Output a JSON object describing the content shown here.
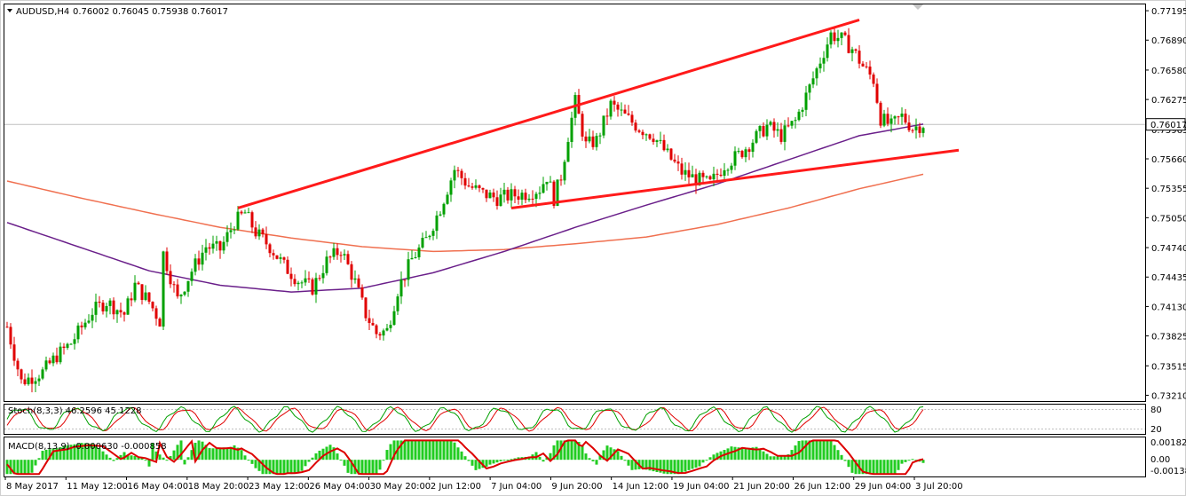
{
  "header": {
    "symbol": "AUDUSD,H4",
    "values": "0.76002 0.76045 0.75938 0.76017"
  },
  "colors": {
    "bull": "#00a000",
    "bear": "#e00000",
    "ma_fast": "#6a1f8a",
    "ma_slow": "#f07050",
    "trendline": "#ff1a1a",
    "stoch_main": "#00a000",
    "stoch_signal": "#e00000",
    "macd_hist": "#22cc22",
    "macd_signal": "#dd0000",
    "current_price_line": "#c0c0c0"
  },
  "chart_data": {
    "type": "candlestick",
    "price_scale": [
      0.77195,
      0.7689,
      0.7658,
      0.76275,
      0.75965,
      0.7566,
      0.75355,
      0.7505,
      0.7474,
      0.74435,
      0.7413,
      0.73825,
      0.73515,
      0.7321
    ],
    "ylim": [
      0.7315,
      0.7726
    ],
    "current_price": 0.76017,
    "current_price_label": "0.76017",
    "price_scale_labels": [
      "0.77195",
      "0.76890",
      "0.76580",
      "0.76275",
      "0.75965",
      "0.75660",
      "0.75355",
      "0.75050",
      "0.74740",
      "0.74435",
      "0.74130",
      "0.73825",
      "0.73515",
      "0.73210"
    ],
    "time_labels": [
      "8 May 2017",
      "11 May 12:00",
      "16 May 04:00",
      "18 May 20:00",
      "23 May 12:00",
      "26 May 04:00",
      "30 May 20:00",
      "2 Jun 12:00",
      "7 Jun 04:00",
      "9 Jun 20:00",
      "14 Jun 12:00",
      "19 Jun 04:00",
      "21 Jun 20:00",
      "26 Jun 12:00",
      "29 Jun 04:00",
      "3 Jul 20:00"
    ],
    "bars": 170,
    "price_path": [
      [
        0,
        0.7392
      ],
      [
        4,
        0.7335
      ],
      [
        10,
        0.7345
      ],
      [
        14,
        0.7362
      ],
      [
        18,
        0.7375
      ],
      [
        24,
        0.7408
      ],
      [
        28,
        0.7418
      ],
      [
        33,
        0.7405
      ],
      [
        36,
        0.7435
      ],
      [
        40,
        0.7418
      ],
      [
        43,
        0.7398
      ],
      [
        44,
        0.7468
      ],
      [
        48,
        0.742
      ],
      [
        52,
        0.745
      ],
      [
        56,
        0.7475
      ],
      [
        60,
        0.7472
      ],
      [
        64,
        0.75
      ],
      [
        67,
        0.751
      ],
      [
        70,
        0.749
      ],
      [
        74,
        0.7475
      ],
      [
        78,
        0.7455
      ],
      [
        82,
        0.744
      ],
      [
        86,
        0.7432
      ],
      [
        90,
        0.746
      ],
      [
        94,
        0.7472
      ],
      [
        98,
        0.7438
      ],
      [
        101,
        0.7405
      ],
      [
        104,
        0.7385
      ],
      [
        107,
        0.7388
      ],
      [
        110,
        0.743
      ],
      [
        114,
        0.7462
      ],
      [
        118,
        0.7482
      ],
      [
        122,
        0.7515
      ],
      [
        126,
        0.7555
      ],
      [
        130,
        0.7538
      ],
      [
        134,
        0.753
      ],
      [
        138,
        0.7525
      ],
      [
        142,
        0.7528
      ],
      [
        146,
        0.753
      ],
      [
        150,
        0.7535
      ],
      [
        152,
        0.7548
      ],
      [
        154,
        0.7525
      ],
      [
        156,
        0.7548
      ],
      [
        158,
        0.759
      ],
      [
        160,
        0.7625
      ],
      [
        163,
        0.758
      ],
      [
        166,
        0.7585
      ],
      [
        170,
        0.7622
      ],
      [
        174,
        0.761
      ],
      [
        178,
        0.7598
      ],
      [
        182,
        0.759
      ],
      [
        186,
        0.757
      ],
      [
        190,
        0.7552
      ],
      [
        194,
        0.7545
      ],
      [
        198,
        0.754
      ],
      [
        202,
        0.756
      ],
      [
        206,
        0.757
      ],
      [
        210,
        0.7585
      ],
      [
        214,
        0.76
      ],
      [
        218,
        0.759
      ],
      [
        222,
        0.7605
      ],
      [
        226,
        0.764
      ],
      [
        229,
        0.7668
      ],
      [
        232,
        0.7695
      ],
      [
        235,
        0.769
      ],
      [
        238,
        0.768
      ],
      [
        241,
        0.7662
      ],
      [
        244,
        0.7648
      ],
      [
        246,
        0.7608
      ],
      [
        249,
        0.76
      ],
      [
        252,
        0.761
      ],
      [
        255,
        0.7598
      ],
      [
        258,
        0.7602
      ]
    ],
    "ma_fast": {
      "name": "",
      "values": [
        [
          0,
          0.75
        ],
        [
          20,
          0.7475
        ],
        [
          40,
          0.745
        ],
        [
          60,
          0.7435
        ],
        [
          80,
          0.7428
        ],
        [
          100,
          0.7432
        ],
        [
          120,
          0.7448
        ],
        [
          140,
          0.747
        ],
        [
          160,
          0.7495
        ],
        [
          180,
          0.7518
        ],
        [
          200,
          0.754
        ],
        [
          220,
          0.7565
        ],
        [
          240,
          0.759
        ],
        [
          258,
          0.7602
        ]
      ]
    },
    "ma_slow": {
      "name": "",
      "values": [
        [
          0,
          0.7543
        ],
        [
          20,
          0.7526
        ],
        [
          40,
          0.751
        ],
        [
          60,
          0.7495
        ],
        [
          80,
          0.7484
        ],
        [
          100,
          0.7475
        ],
        [
          120,
          0.747
        ],
        [
          140,
          0.7472
        ],
        [
          160,
          0.7478
        ],
        [
          180,
          0.7485
        ],
        [
          200,
          0.7498
        ],
        [
          220,
          0.7515
        ],
        [
          240,
          0.7535
        ],
        [
          258,
          0.755
        ]
      ]
    },
    "trendlines": [
      {
        "from": [
          65,
          0.7515
        ],
        "to": [
          240,
          0.771
        ]
      },
      {
        "from": [
          142,
          0.7515
        ],
        "to": [
          268,
          0.7575
        ]
      }
    ],
    "stochastic": {
      "label": "Stoch(8,3,3) 46.2596 45.1228",
      "scale_labels": [
        "80",
        "20"
      ],
      "ylim": [
        0,
        100
      ]
    },
    "macd": {
      "label": "MACD(8,13,9) -0.000630 -0.000858",
      "scale_labels": [
        "0.001821",
        "0.00",
        "-0.001388"
      ],
      "ylim": [
        -0.0014,
        0.0019
      ]
    }
  }
}
